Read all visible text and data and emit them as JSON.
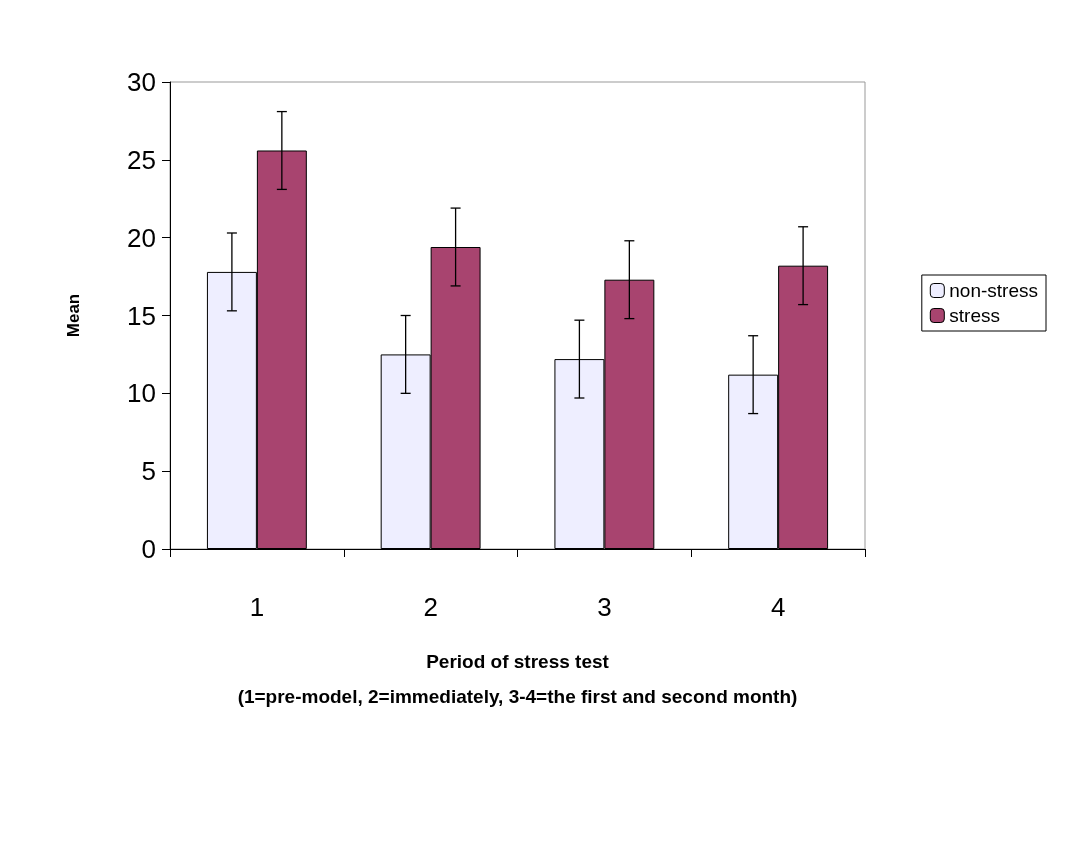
{
  "chart_data": {
    "type": "bar",
    "categories": [
      "1",
      "2",
      "3",
      "4"
    ],
    "series": [
      {
        "name": "non-stress",
        "color": "#eeeeff",
        "values": [
          17.8,
          12.5,
          12.2,
          11.2
        ],
        "errors": [
          2.5,
          2.5,
          2.5,
          2.5
        ]
      },
      {
        "name": "stress",
        "color": "#a8446f",
        "values": [
          25.6,
          19.4,
          17.3,
          18.2
        ],
        "errors": [
          2.5,
          2.5,
          2.5,
          2.5
        ]
      }
    ],
    "xlabel": "Period of stress test\n(1=pre-model, 2=immediately, 3-4=the first and second month)",
    "ylabel": "Mean",
    "ylim": [
      0,
      30
    ],
    "yticks": [
      0,
      5,
      10,
      15,
      20,
      25,
      30
    ],
    "grid": false,
    "legend": "right"
  }
}
